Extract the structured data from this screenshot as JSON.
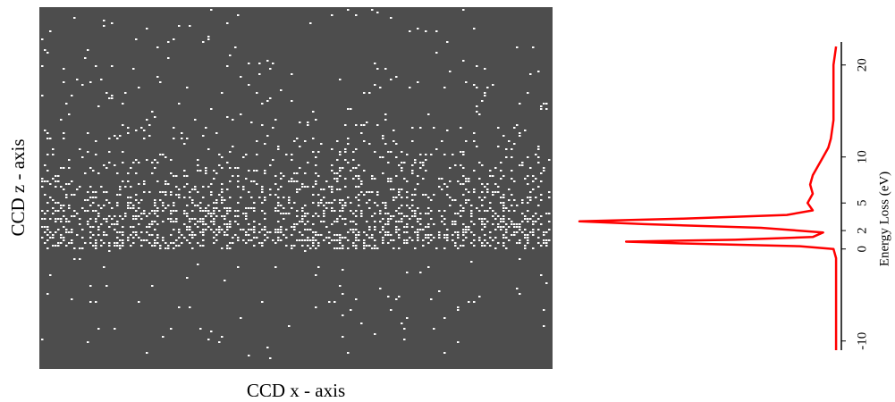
{
  "chart_data": [
    {
      "type": "image",
      "ylabel": "CCD z - axis",
      "xlabel": "CCD x - axis"
    },
    {
      "type": "line",
      "ylabel": "Energy Loss (eV)",
      "x": [
        -11,
        -8,
        -5,
        -2,
        -1,
        0,
        0.3,
        0.6,
        0.8,
        1.0,
        1.3,
        1.8,
        2.3,
        2.7,
        3.0,
        3.3,
        3.7,
        4.2,
        5,
        6,
        7,
        8,
        9,
        10,
        11,
        12,
        14,
        17,
        20,
        22
      ],
      "series": [
        {
          "color": "#ff0000",
          "values": [
            1,
            1,
            1,
            1,
            1,
            2,
            15,
            60,
            82,
            40,
            10,
            6,
            30,
            75,
            100,
            60,
            20,
            10,
            12,
            10,
            11,
            10,
            8,
            6,
            4,
            3,
            2,
            2,
            2,
            1
          ]
        }
      ],
      "xlim": [
        -11,
        22.5
      ],
      "ylim": [
        0,
        100
      ],
      "xticks": [
        -10,
        0,
        2,
        5,
        10,
        20
      ]
    }
  ]
}
